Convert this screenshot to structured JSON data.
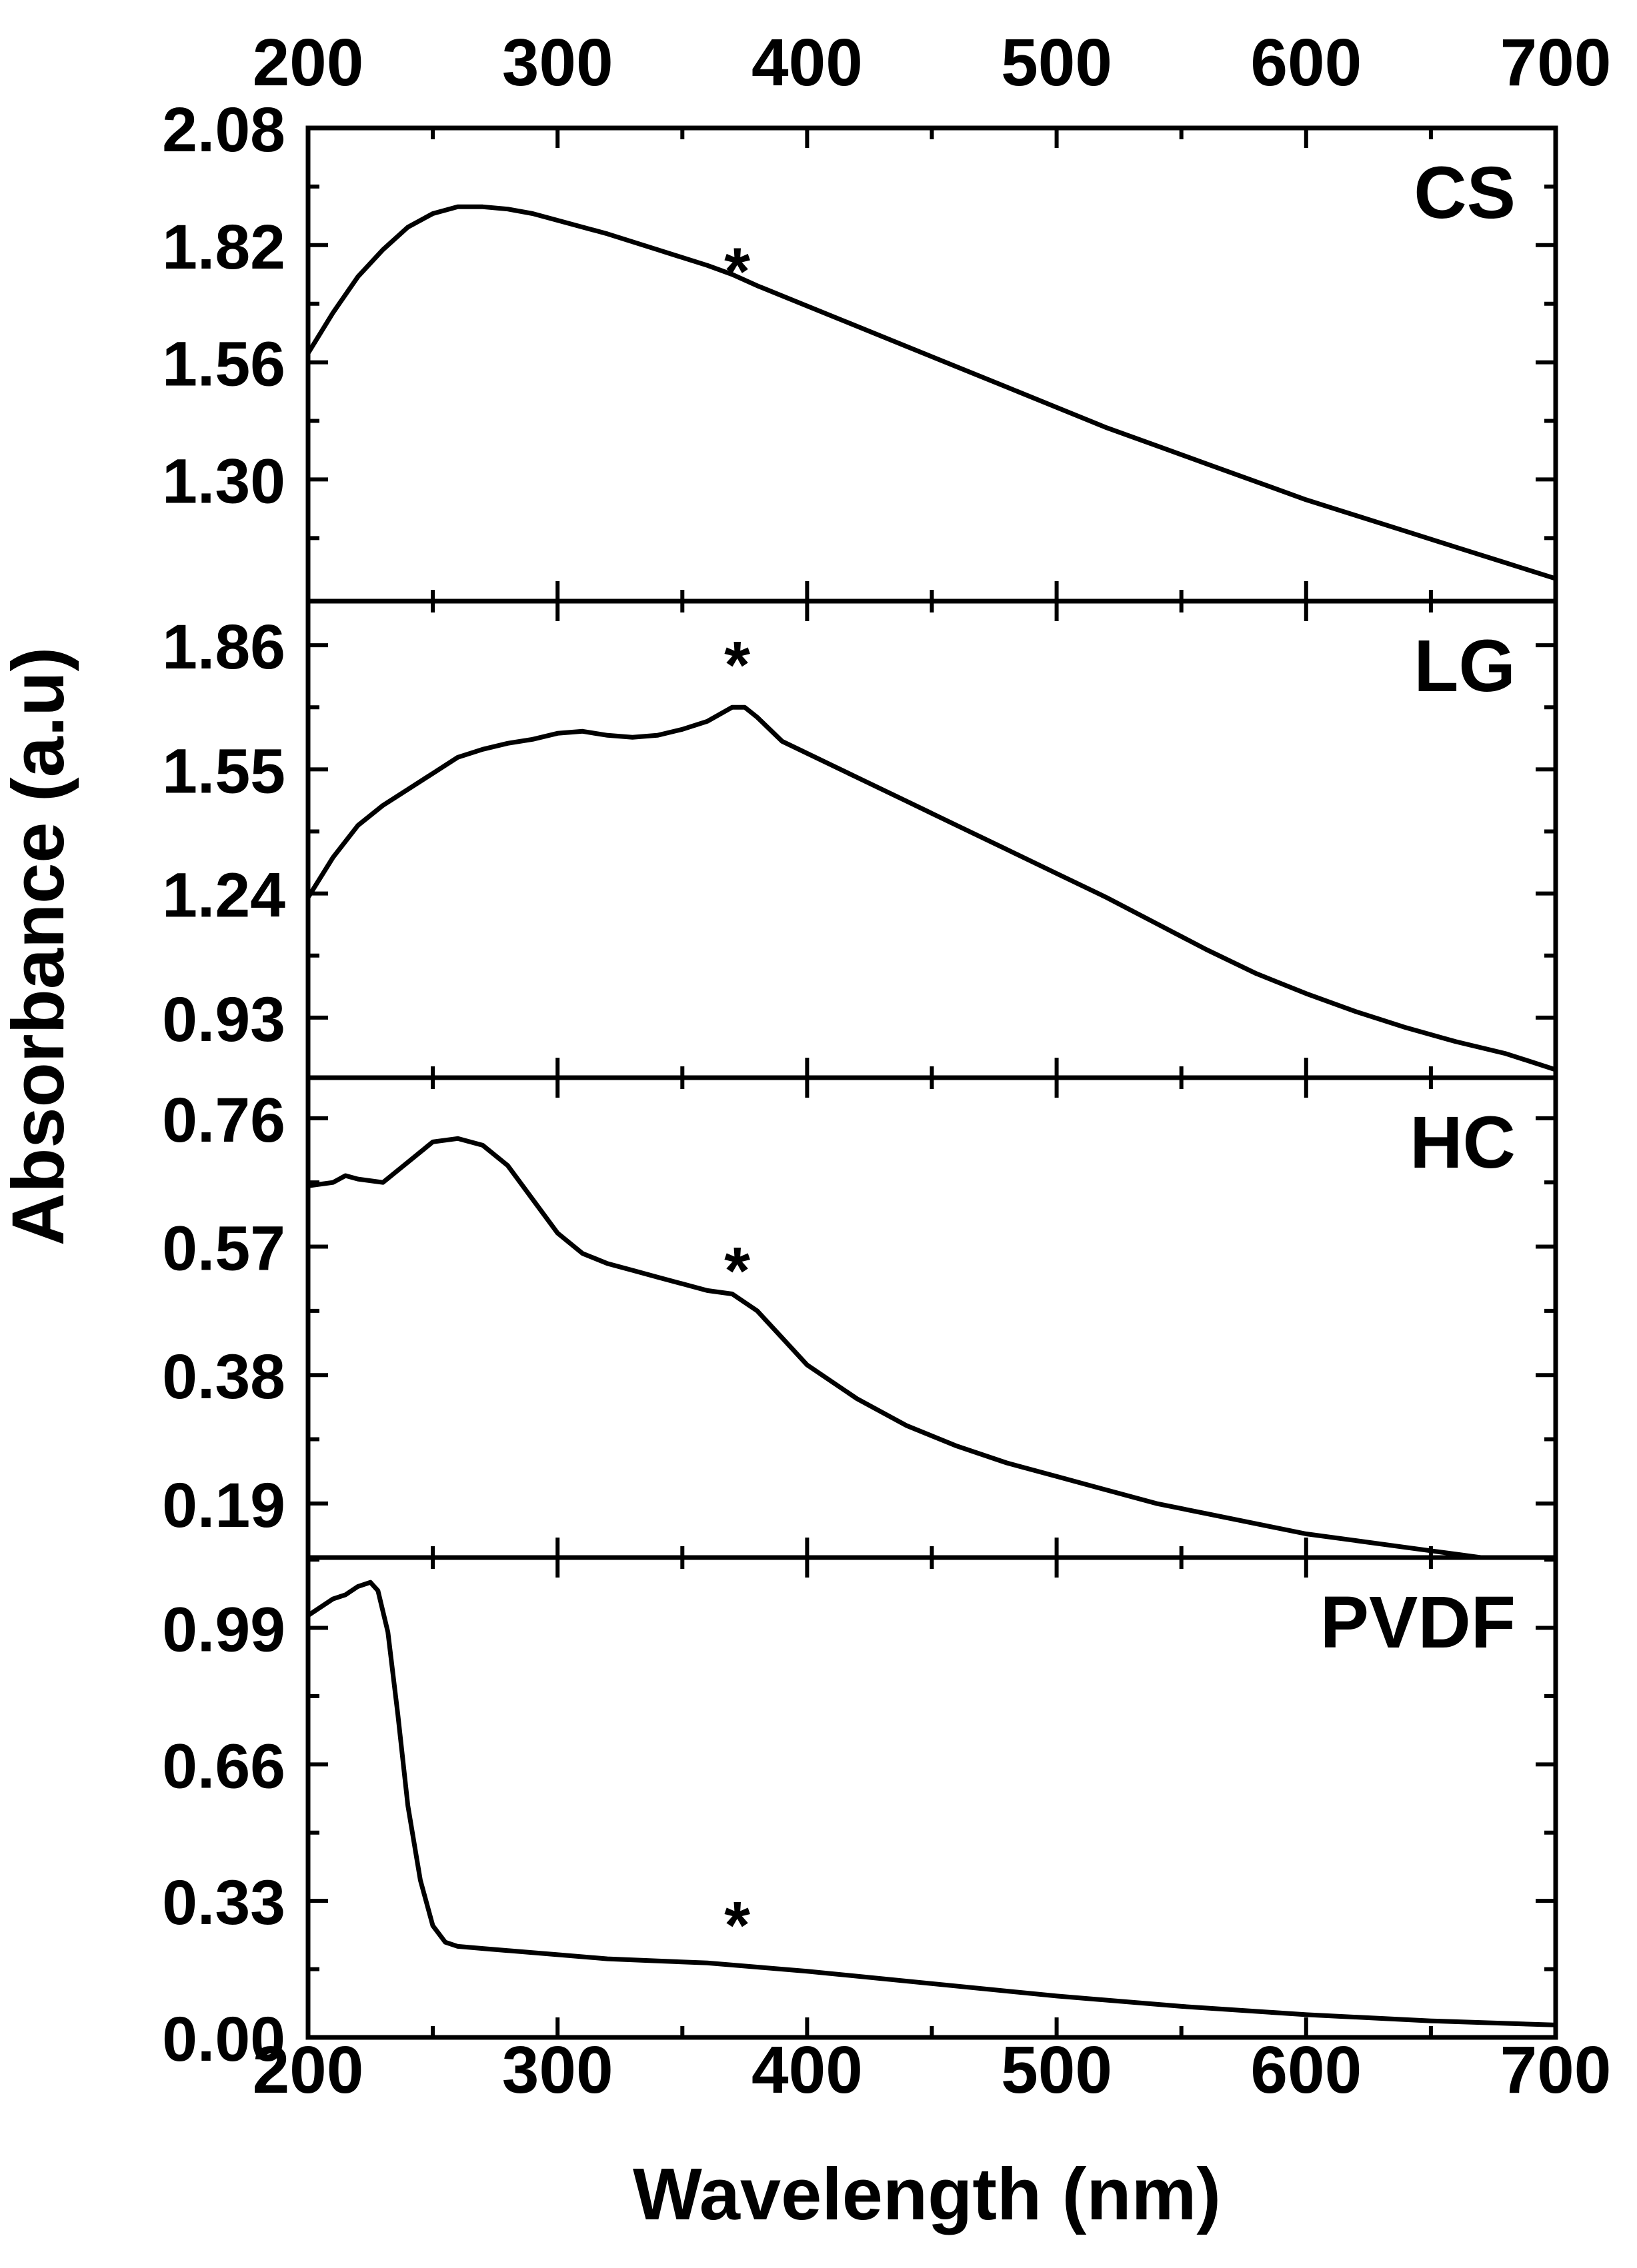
{
  "figure": {
    "xlabel": "Wavelength (nm)",
    "ylabel": "Absorbance (a.u)"
  },
  "chart_data": {
    "type": "line",
    "shared_x": {
      "label": "Wavelength (nm)",
      "lim": [
        200,
        700
      ],
      "ticks": [
        200,
        300,
        400,
        500,
        600,
        700
      ],
      "tick_labels": [
        "200",
        "300",
        "400",
        "500",
        "600",
        "700"
      ],
      "minor_step": 50
    },
    "ylabel": "Absorbance (a.u)",
    "grid": false,
    "panels": [
      {
        "label": "CS",
        "ylim": [
          1.03,
          2.08
        ],
        "yticks": [
          1.3,
          1.56,
          1.82,
          2.08
        ],
        "ytick_labels": [
          "1.30",
          "1.56",
          "1.82",
          "2.08"
        ],
        "annotation": {
          "text": "*",
          "x": 372,
          "y": 1.77
        },
        "series": [
          {
            "x": [
              200,
              210,
              220,
              230,
              240,
              250,
              260,
              270,
              280,
              290,
              300,
              320,
              340,
              360,
              370,
              380,
              400,
              420,
              440,
              460,
              480,
              500,
              520,
              540,
              560,
              580,
              600,
              620,
              640,
              660,
              680,
              700
            ],
            "y": [
              1.58,
              1.67,
              1.75,
              1.81,
              1.86,
              1.89,
              1.905,
              1.905,
              1.9,
              1.89,
              1.875,
              1.845,
              1.81,
              1.775,
              1.755,
              1.73,
              1.685,
              1.64,
              1.595,
              1.55,
              1.505,
              1.46,
              1.415,
              1.375,
              1.335,
              1.295,
              1.255,
              1.22,
              1.185,
              1.15,
              1.115,
              1.08
            ]
          }
        ]
      },
      {
        "label": "LG",
        "ylim": [
          0.78,
          1.97
        ],
        "yticks": [
          0.93,
          1.24,
          1.55,
          1.86
        ],
        "ytick_labels": [
          "0.93",
          "1.24",
          "1.55",
          "1.86"
        ],
        "annotation": {
          "text": "*",
          "x": 372,
          "y": 1.82
        },
        "series": [
          {
            "x": [
              200,
              210,
              220,
              230,
              240,
              250,
              260,
              270,
              280,
              290,
              300,
              310,
              320,
              330,
              340,
              350,
              360,
              370,
              375,
              380,
              390,
              400,
              420,
              440,
              460,
              480,
              500,
              520,
              540,
              560,
              580,
              600,
              620,
              640,
              660,
              680,
              700
            ],
            "y": [
              1.23,
              1.33,
              1.41,
              1.46,
              1.5,
              1.54,
              1.58,
              1.6,
              1.615,
              1.625,
              1.64,
              1.645,
              1.635,
              1.63,
              1.635,
              1.65,
              1.67,
              1.705,
              1.705,
              1.68,
              1.62,
              1.59,
              1.53,
              1.47,
              1.41,
              1.35,
              1.29,
              1.23,
              1.165,
              1.1,
              1.04,
              0.99,
              0.945,
              0.905,
              0.87,
              0.84,
              0.8
            ]
          }
        ]
      },
      {
        "label": "HC",
        "ylim": [
          0.11,
          0.82
        ],
        "yticks": [
          0.19,
          0.38,
          0.57,
          0.76
        ],
        "ytick_labels": [
          "0.19",
          "0.38",
          "0.57",
          "0.76"
        ],
        "annotation": {
          "text": "*",
          "x": 372,
          "y": 0.54
        },
        "series": [
          {
            "x": [
              200,
              210,
              215,
              220,
              230,
              240,
              250,
              260,
              270,
              280,
              290,
              300,
              310,
              320,
              330,
              340,
              350,
              360,
              370,
              380,
              390,
              400,
              420,
              440,
              460,
              480,
              500,
              520,
              540,
              560,
              580,
              600,
              620,
              640,
              660,
              680,
              700
            ],
            "y": [
              0.66,
              0.665,
              0.675,
              0.67,
              0.665,
              0.695,
              0.725,
              0.73,
              0.72,
              0.69,
              0.64,
              0.59,
              0.56,
              0.545,
              0.535,
              0.525,
              0.515,
              0.505,
              0.5,
              0.475,
              0.435,
              0.395,
              0.345,
              0.305,
              0.275,
              0.25,
              0.23,
              0.21,
              0.19,
              0.175,
              0.16,
              0.145,
              0.135,
              0.125,
              0.115,
              0.105,
              0.095
            ]
          }
        ]
      },
      {
        "label": "PVDF",
        "ylim": [
          0.0,
          1.16
        ],
        "yticks": [
          0.0,
          0.33,
          0.66,
          0.99
        ],
        "ytick_labels": [
          "0.00",
          "0.33",
          "0.66",
          "0.99"
        ],
        "annotation": {
          "text": "*",
          "x": 372,
          "y": 0.28
        },
        "series": [
          {
            "x": [
              200,
              210,
              215,
              220,
              225,
              228,
              232,
              236,
              240,
              245,
              250,
              255,
              260,
              270,
              280,
              300,
              320,
              340,
              360,
              380,
              400,
              450,
              500,
              550,
              600,
              650,
              700
            ],
            "y": [
              1.02,
              1.06,
              1.07,
              1.09,
              1.1,
              1.08,
              0.98,
              0.78,
              0.56,
              0.38,
              0.27,
              0.23,
              0.22,
              0.215,
              0.21,
              0.2,
              0.19,
              0.185,
              0.18,
              0.17,
              0.16,
              0.13,
              0.1,
              0.075,
              0.055,
              0.04,
              0.03
            ]
          }
        ]
      }
    ]
  }
}
